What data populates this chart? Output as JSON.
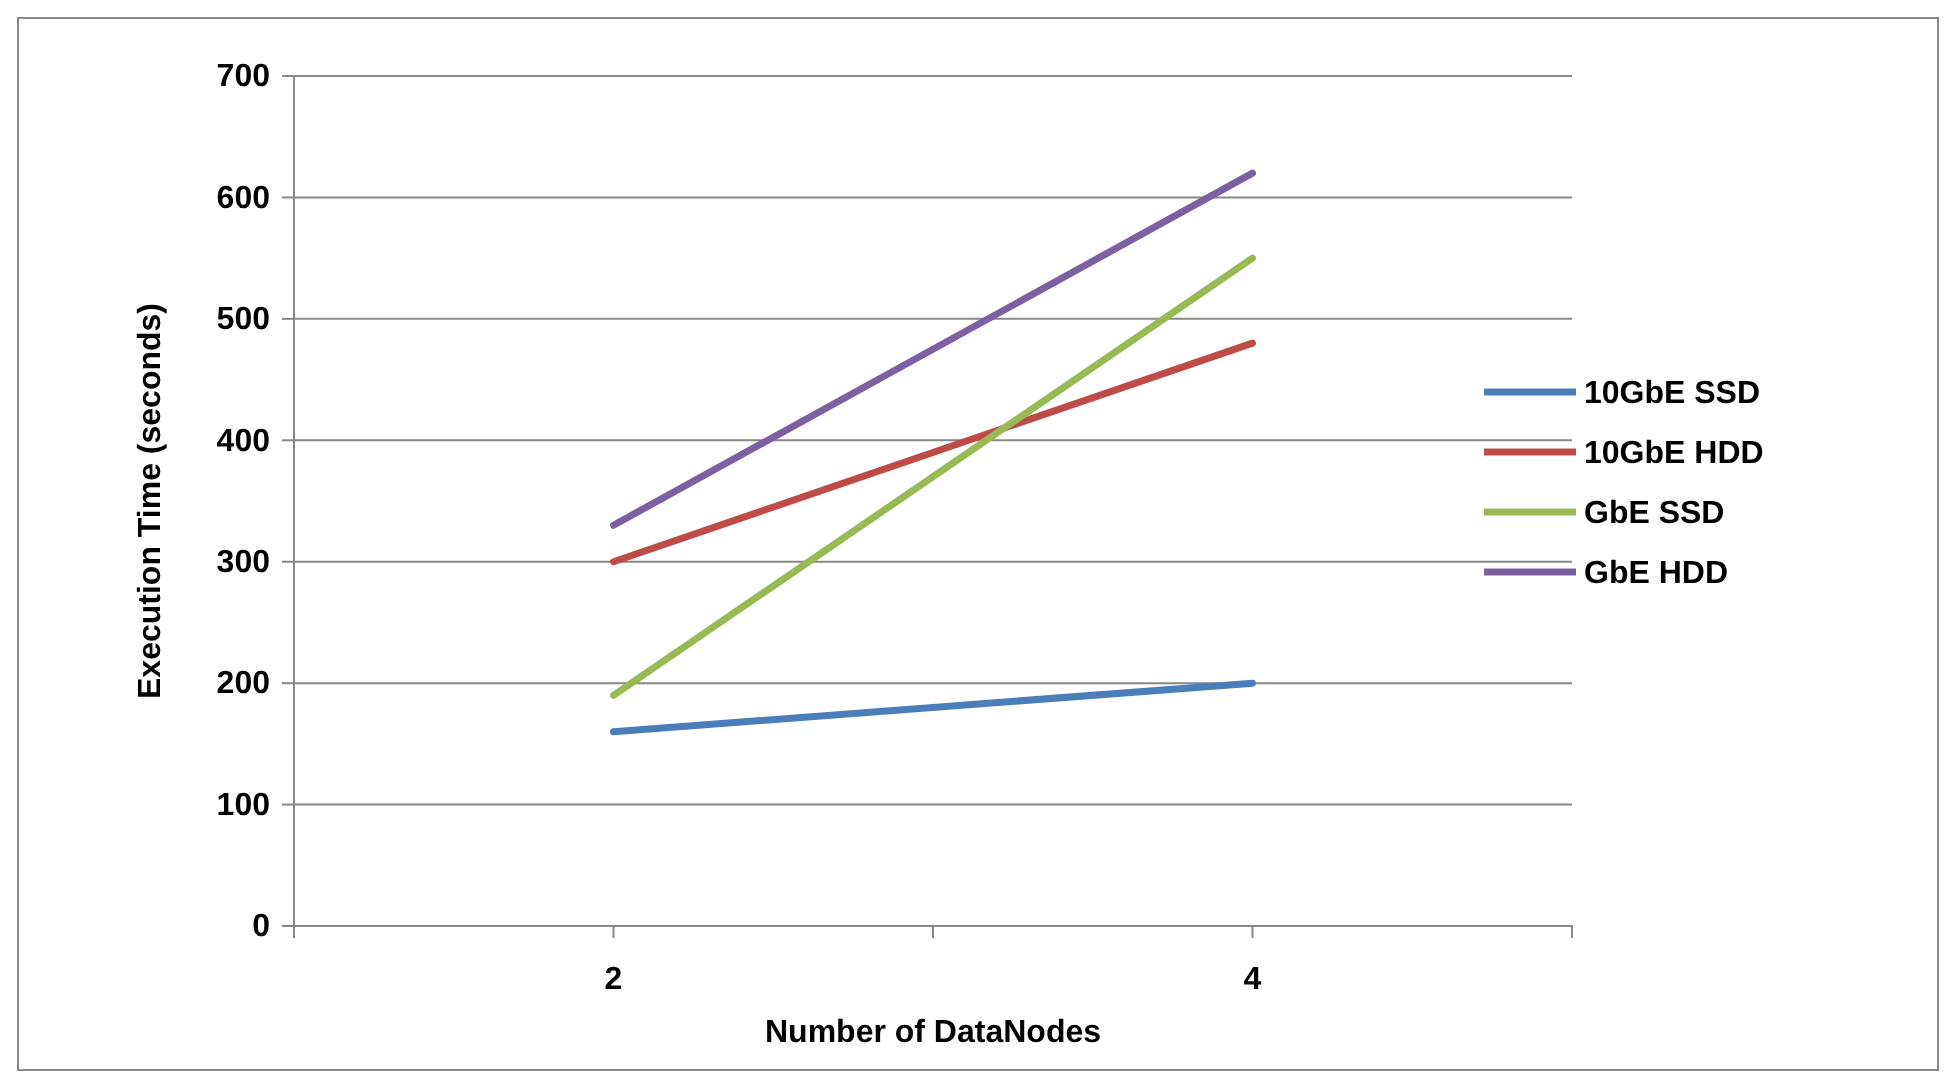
{
  "chart_data": {
    "type": "line",
    "xlabel": "Number of DataNodes",
    "ylabel": "Execution Time (seconds)",
    "x": [
      2,
      4
    ],
    "series": [
      {
        "name": "10GbE SSD",
        "color": "#4a7ebb",
        "values": [
          160,
          200
        ]
      },
      {
        "name": "10GbE HDD",
        "color": "#be4b48",
        "values": [
          300,
          480
        ]
      },
      {
        "name": "GbE SSD",
        "color": "#98b954",
        "values": [
          190,
          550
        ]
      },
      {
        "name": "GbE HDD",
        "color": "#7d60a0",
        "values": [
          330,
          620
        ]
      }
    ],
    "xlim": [
      1,
      5
    ],
    "xticks": [
      {
        "value": 1,
        "label": null
      },
      2,
      {
        "value": 3,
        "label": null
      },
      4,
      {
        "value": 5,
        "label": null
      }
    ],
    "ylim": [
      0,
      700
    ],
    "yticks": [
      0,
      100,
      200,
      300,
      400,
      500,
      600,
      700
    ],
    "grid": "y",
    "legend": "right",
    "marker": "none",
    "line_style": "solid"
  }
}
